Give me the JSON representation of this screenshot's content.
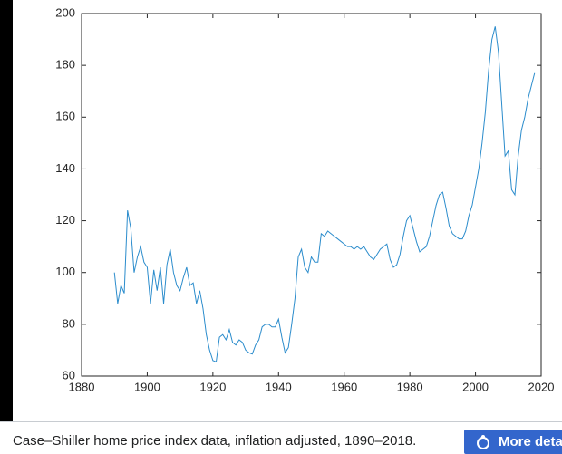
{
  "chart_data": {
    "type": "line",
    "x": [
      1890,
      1891,
      1892,
      1893,
      1894,
      1895,
      1896,
      1897,
      1898,
      1899,
      1900,
      1901,
      1902,
      1903,
      1904,
      1905,
      1906,
      1907,
      1908,
      1909,
      1910,
      1911,
      1912,
      1913,
      1914,
      1915,
      1916,
      1917,
      1918,
      1919,
      1920,
      1921,
      1922,
      1923,
      1924,
      1925,
      1926,
      1927,
      1928,
      1929,
      1930,
      1931,
      1932,
      1933,
      1934,
      1935,
      1936,
      1937,
      1938,
      1939,
      1940,
      1941,
      1942,
      1943,
      1944,
      1945,
      1946,
      1947,
      1948,
      1949,
      1950,
      1951,
      1952,
      1953,
      1954,
      1955,
      1956,
      1957,
      1958,
      1959,
      1960,
      1961,
      1962,
      1963,
      1964,
      1965,
      1966,
      1967,
      1968,
      1969,
      1970,
      1971,
      1972,
      1973,
      1974,
      1975,
      1976,
      1977,
      1978,
      1979,
      1980,
      1981,
      1982,
      1983,
      1984,
      1985,
      1986,
      1987,
      1988,
      1989,
      1990,
      1991,
      1992,
      1993,
      1994,
      1995,
      1996,
      1997,
      1998,
      1999,
      2000,
      2001,
      2002,
      2003,
      2004,
      2005,
      2006,
      2007,
      2008,
      2009,
      2010,
      2011,
      2012,
      2013,
      2014,
      2015,
      2016,
      2017,
      2018
    ],
    "series": [
      {
        "color": "#2b8ccc",
        "values": [
          100,
          88,
          95,
          92,
          124,
          117,
          100,
          106,
          110,
          104,
          102,
          88,
          101,
          93,
          102,
          88,
          103,
          109,
          100,
          95,
          93,
          98,
          102,
          95,
          96,
          88,
          93,
          86,
          76,
          70,
          66,
          65.5,
          75,
          76,
          74,
          78,
          73,
          72,
          74,
          73,
          70,
          69,
          68.5,
          72,
          74,
          79,
          80,
          80,
          79,
          79,
          82,
          75,
          69,
          71,
          80,
          90,
          106,
          109,
          102,
          100,
          106,
          104,
          104,
          115,
          114,
          116,
          115,
          114,
          113,
          112,
          111,
          110,
          110,
          109,
          110,
          109,
          110,
          108,
          106,
          105,
          107,
          109,
          110,
          111,
          105,
          102,
          103,
          107,
          114,
          120,
          122,
          117,
          112,
          108,
          109,
          110,
          114,
          120,
          126,
          130,
          131,
          125,
          118,
          115,
          114,
          113,
          113,
          116,
          122,
          126,
          133,
          140,
          150,
          162,
          178,
          190,
          195,
          185,
          165,
          145,
          147,
          132,
          130,
          145,
          155,
          160,
          167,
          172,
          177
        ]
      }
    ],
    "xlim": [
      1880,
      2020
    ],
    "xticks": [
      1880,
      1900,
      1920,
      1940,
      1960,
      1980,
      2000,
      2020
    ],
    "ylim": [
      60,
      200
    ],
    "yticks": [
      60,
      80,
      100,
      120,
      140,
      160,
      180,
      200
    ]
  },
  "caption": "Case–Shiller home price index data, inflation adjusted, 1890–2018.",
  "button": "More details"
}
